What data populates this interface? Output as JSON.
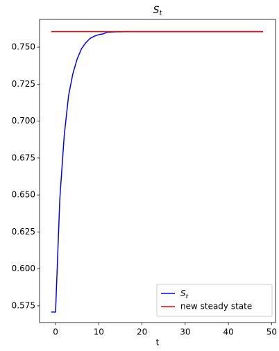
{
  "chart_data": {
    "type": "line",
    "title": {
      "text": "S",
      "subscript": "t"
    },
    "xlabel": "t",
    "series": [
      {
        "name": {
          "text": "S",
          "subscript": "t"
        },
        "color": "#0000ff",
        "x": [
          -1,
          0,
          1,
          2,
          3,
          4,
          5,
          6,
          7,
          8,
          9,
          10,
          11,
          12,
          13,
          14,
          15,
          16,
          17,
          18,
          19,
          20,
          21,
          22,
          23,
          24,
          25,
          26,
          27,
          28,
          29,
          30,
          31,
          32,
          33,
          34,
          35,
          36,
          37,
          38,
          39,
          40,
          41,
          42,
          43,
          44,
          45,
          46,
          47,
          48
        ],
        "values": [
          0.5708,
          0.5708,
          0.648,
          0.69,
          0.717,
          0.732,
          0.742,
          0.749,
          0.753,
          0.756,
          0.7575,
          0.7585,
          0.759,
          0.7602,
          0.7603,
          0.7604,
          0.7604,
          0.7605,
          0.7605,
          0.7605,
          0.7605,
          0.7605,
          0.7605,
          0.7605,
          0.7605,
          0.7605,
          0.7605,
          0.7605,
          0.7605,
          0.7605,
          0.7605,
          0.7605,
          0.7605,
          0.7605,
          0.7605,
          0.7605,
          0.7605,
          0.7605,
          0.7605,
          0.7605,
          0.7605,
          0.7605,
          0.7605,
          0.7605,
          0.7605,
          0.7605,
          0.7605,
          0.7605,
          0.7605,
          0.7605
        ]
      },
      {
        "name": "new steady state",
        "color": "#ff0000",
        "x": [
          -1,
          48
        ],
        "values": [
          0.7605,
          0.7605
        ]
      }
    ],
    "xlim": [
      -3.7,
      50.9
    ],
    "xticks": [
      0,
      10,
      20,
      30,
      40,
      50
    ],
    "ylim": [
      0.5637,
      0.7688
    ],
    "yticks": [
      0.575,
      {
        "value": 0.6,
        "label": "0.600"
      },
      0.625,
      {
        "value": 0.65,
        "label": "0.650"
      },
      0.675,
      {
        "value": 0.7,
        "label": "0.700"
      },
      0.725,
      {
        "value": 0.75,
        "label": "0.750"
      }
    ],
    "legend": "lower right",
    "grid": false
  }
}
